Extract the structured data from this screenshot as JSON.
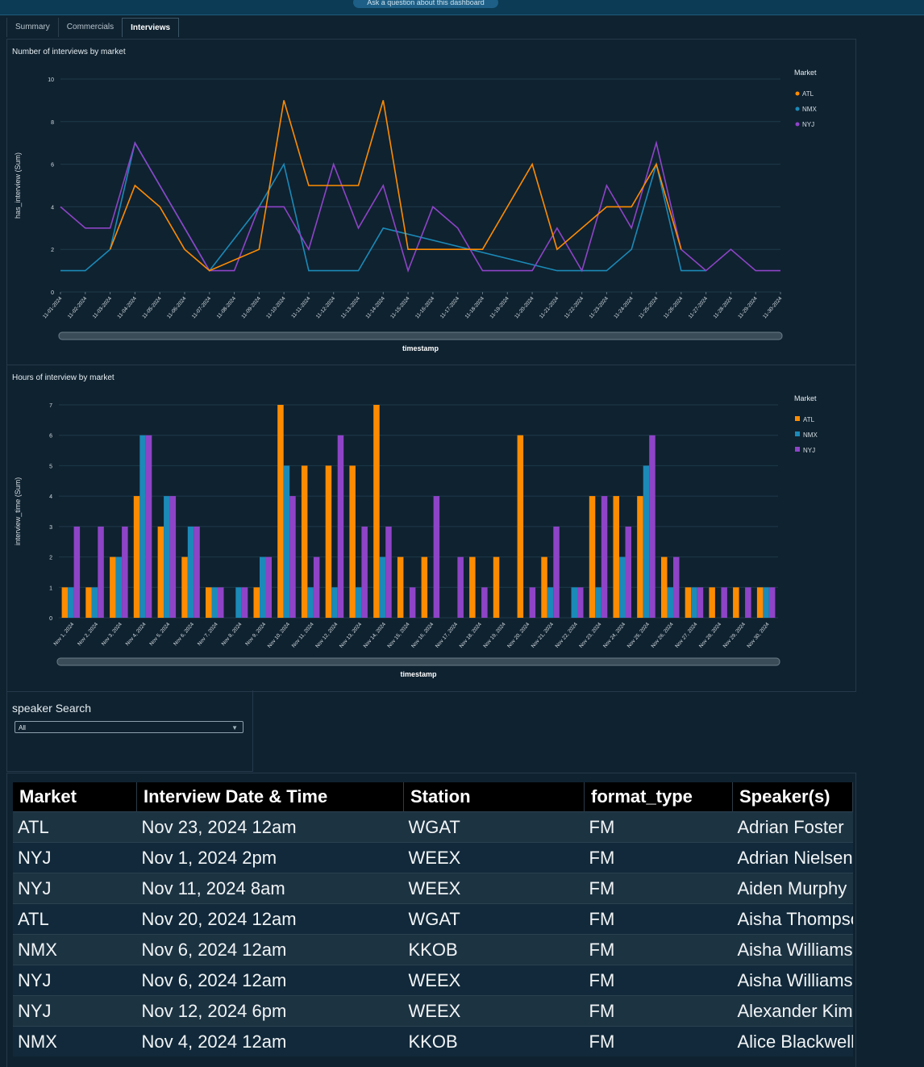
{
  "header": {
    "ask_label": "Ask a question about this dashboard"
  },
  "tabs": [
    "Summary",
    "Commercials",
    "Interviews"
  ],
  "active_tab": "Interviews",
  "colors": {
    "ATL": "#ff8c00",
    "NMX": "#1b8ab8",
    "NYJ": "#8e44c7",
    "grid": "#1f3a4a",
    "text": "#d5dde2"
  },
  "chart_data": [
    {
      "type": "line",
      "title": "Number of interviews by market",
      "xlabel": "timestamp",
      "ylabel": "has_interview (Sum)",
      "ylim": [
        0,
        10
      ],
      "yticks": [
        0,
        2,
        4,
        6,
        8,
        10
      ],
      "legend_title": "Market",
      "categories": [
        "11-01-2024",
        "11-02-2024",
        "11-03-2024",
        "11-04-2024",
        "11-05-2024",
        "11-06-2024",
        "11-07-2024",
        "11-08-2024",
        "11-09-2024",
        "11-10-2024",
        "11-11-2024",
        "11-12-2024",
        "11-13-2024",
        "11-14-2024",
        "11-15-2024",
        "11-16-2024",
        "11-17-2024",
        "11-18-2024",
        "11-19-2024",
        "11-20-2024",
        "11-21-2024",
        "11-22-2024",
        "11-23-2024",
        "11-24-2024",
        "11-25-2024",
        "11-26-2024",
        "11-27-2024",
        "11-28-2024",
        "11-29-2024",
        "11-30-2024"
      ],
      "series": [
        {
          "name": "ATL",
          "values": [
            null,
            null,
            2,
            5,
            4,
            2,
            1,
            null,
            2,
            9,
            5,
            5,
            5,
            9,
            2,
            2,
            2,
            2,
            null,
            6,
            2,
            null,
            4,
            4,
            6,
            2,
            null,
            null,
            null,
            null
          ]
        },
        {
          "name": "NMX",
          "values": [
            1,
            1,
            2,
            7,
            null,
            null,
            1,
            null,
            4,
            6,
            1,
            1,
            1,
            3,
            null,
            null,
            null,
            null,
            null,
            null,
            1,
            1,
            1,
            2,
            6,
            1,
            1,
            null,
            null,
            null
          ]
        },
        {
          "name": "NYJ",
          "values": [
            4,
            3,
            3,
            7,
            5,
            3,
            1,
            1,
            4,
            4,
            2,
            6,
            3,
            5,
            1,
            4,
            3,
            1,
            1,
            1,
            3,
            1,
            5,
            3,
            7,
            2,
            1,
            2,
            1,
            1
          ]
        }
      ]
    },
    {
      "type": "bar",
      "title": "Hours of interview by market",
      "xlabel": "timestamp",
      "ylabel": "interview_time (Sum)",
      "ylim": [
        0,
        7
      ],
      "yticks": [
        0,
        1,
        2,
        3,
        4,
        5,
        6,
        7
      ],
      "legend_title": "Market",
      "categories": [
        "Nov 1, 2024",
        "Nov 2, 2024",
        "Nov 3, 2024",
        "Nov 4, 2024",
        "Nov 5, 2024",
        "Nov 6, 2024",
        "Nov 7, 2024",
        "Nov 8, 2024",
        "Nov 9, 2024",
        "Nov 10, 2024",
        "Nov 11, 2024",
        "Nov 12, 2024",
        "Nov 13, 2024",
        "Nov 14, 2024",
        "Nov 15, 2024",
        "Nov 16, 2024",
        "Nov 17, 2024",
        "Nov 18, 2024",
        "Nov 19, 2024",
        "Nov 20, 2024",
        "Nov 21, 2024",
        "Nov 22, 2024",
        "Nov 23, 2024",
        "Nov 24, 2024",
        "Nov 25, 2024",
        "Nov 26, 2024",
        "Nov 27, 2024",
        "Nov 28, 2024",
        "Nov 29, 2024",
        "Nov 30, 2024"
      ],
      "series": [
        {
          "name": "ATL",
          "values": [
            1,
            1,
            2,
            4,
            3,
            2,
            1,
            0,
            1,
            7,
            5,
            5,
            5,
            7,
            2,
            2,
            0,
            2,
            2,
            6,
            2,
            0,
            4,
            4,
            4,
            2,
            1,
            1,
            1,
            1
          ]
        },
        {
          "name": "NMX",
          "values": [
            1,
            1,
            2,
            6,
            4,
            3,
            1,
            1,
            2,
            5,
            1,
            1,
            1,
            2,
            0,
            0,
            0,
            0,
            0,
            0,
            1,
            1,
            1,
            2,
            5,
            1,
            1,
            0,
            0,
            1
          ]
        },
        {
          "name": "NYJ",
          "values": [
            3,
            3,
            3,
            6,
            4,
            3,
            1,
            1,
            2,
            4,
            2,
            6,
            3,
            3,
            1,
            4,
            2,
            1,
            0,
            1,
            3,
            1,
            4,
            3,
            6,
            2,
            1,
            1,
            1,
            1
          ]
        }
      ]
    }
  ],
  "filter": {
    "label": "speaker Search",
    "value": "All"
  },
  "table": {
    "columns": [
      "Market",
      "Interview Date & Time",
      "Station",
      "format_type",
      "Speaker(s)"
    ],
    "rows": [
      [
        "ATL",
        "Nov 23, 2024 12am",
        "WGAT",
        "FM",
        "Adrian Foster"
      ],
      [
        "NYJ",
        "Nov 1, 2024 2pm",
        "WEEX",
        "FM",
        "Adrian Nielsen"
      ],
      [
        "NYJ",
        "Nov 11, 2024 8am",
        "WEEX",
        "FM",
        "Aiden Murphy"
      ],
      [
        "ATL",
        "Nov 20, 2024 12am",
        "WGAT",
        "FM",
        "Aisha Thompson"
      ],
      [
        "NMX",
        "Nov 6, 2024 12am",
        "KKOB",
        "FM",
        "Aisha Williams"
      ],
      [
        "NYJ",
        "Nov 6, 2024 12am",
        "WEEX",
        "FM",
        "Aisha Williams"
      ],
      [
        "NYJ",
        "Nov 12, 2024 6pm",
        "WEEX",
        "FM",
        "Alexander Kim"
      ],
      [
        "NMX",
        "Nov 4, 2024 12am",
        "KKOB",
        "FM",
        "Alice Blackwell"
      ]
    ]
  }
}
